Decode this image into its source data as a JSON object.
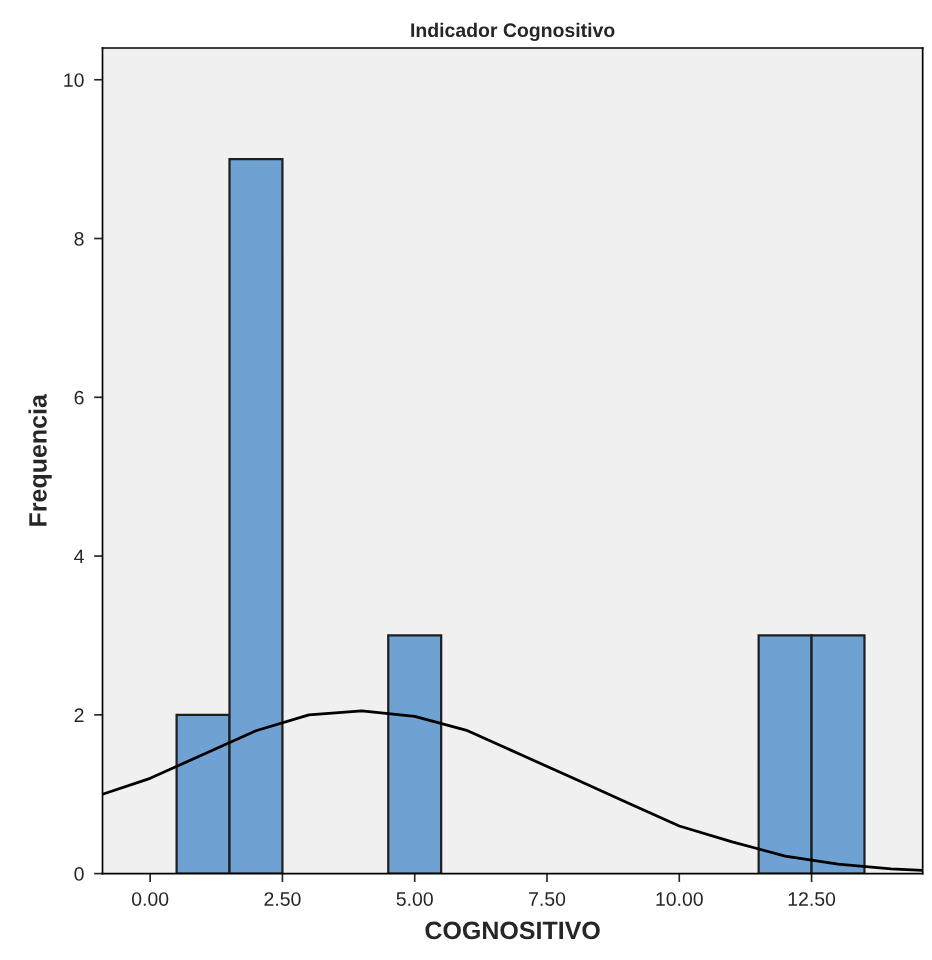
{
  "chart_data": {
    "type": "histogram",
    "title": "Indicador Cognositivo",
    "xlabel": "COGNOSITIVO",
    "ylabel": "Frequencia",
    "bins": [
      0.5,
      1.5,
      2.5,
      3.5,
      4.5,
      5.5,
      6.5,
      7.5,
      8.5,
      9.5,
      10.5,
      11.5,
      12.5,
      13.5
    ],
    "values": [
      2,
      9,
      0,
      0,
      3,
      0,
      0,
      0,
      0,
      0,
      0,
      3,
      3
    ],
    "color": "#6fa1d3",
    "series": [
      {
        "type": "line",
        "color": "#000000",
        "x": [
          -0.9,
          0,
          1,
          2,
          3,
          4,
          5,
          6,
          7,
          8,
          9,
          10,
          11,
          12,
          13,
          14,
          14.6
        ],
        "values": [
          1.0,
          1.2,
          1.5,
          1.8,
          2.0,
          2.05,
          1.98,
          1.8,
          1.5,
          1.2,
          0.9,
          0.6,
          0.4,
          0.22,
          0.12,
          0.06,
          0.04
        ]
      }
    ],
    "xlim": [
      -0.9,
      14.6
    ],
    "ylim": [
      0,
      10.4
    ],
    "xticks": [
      {
        "value": 0,
        "label": "0.00"
      },
      {
        "value": 2.5,
        "label": "2.50"
      },
      {
        "value": 5,
        "label": "5.00"
      },
      {
        "value": 7.5,
        "label": "7.50"
      },
      {
        "value": 10,
        "label": "10.00"
      },
      {
        "value": 12.5,
        "label": "12.50"
      }
    ],
    "yticks": [
      0,
      2,
      4,
      6,
      8,
      10
    ],
    "grid": false
  }
}
